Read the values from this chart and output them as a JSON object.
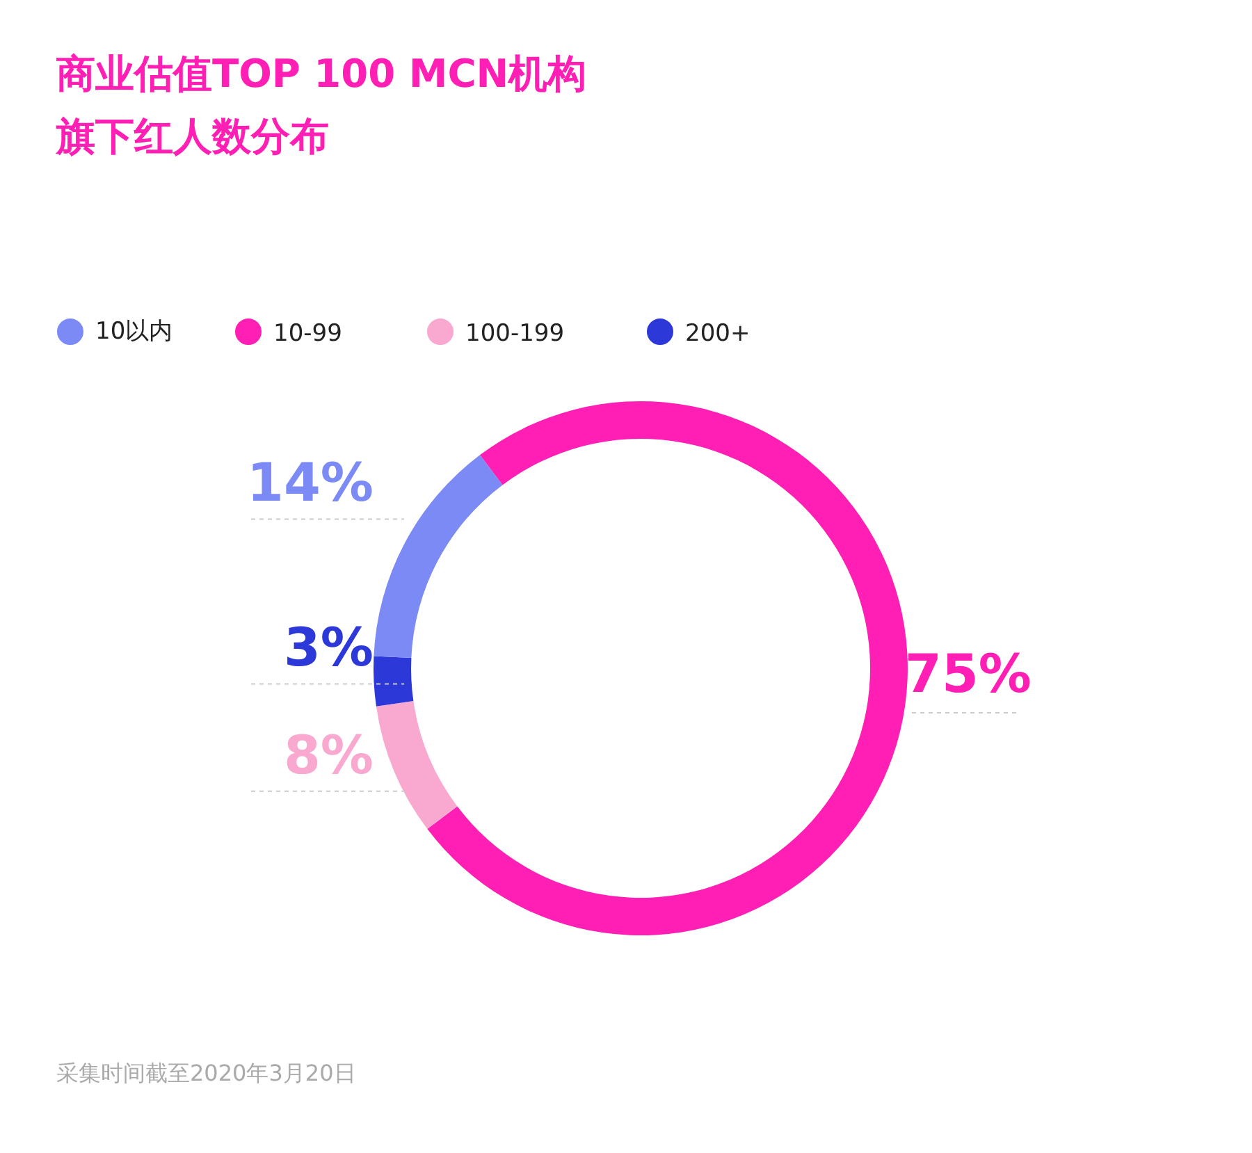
{
  "chart_data": {
    "type": "donut",
    "title": "商业估值TOP 100 MCN机构旗下红人数分布",
    "categories": [
      "10以内",
      "10-99",
      "100-199",
      "200+"
    ],
    "values": [
      14,
      75,
      8,
      3
    ],
    "colors": [
      "#7b8af5",
      "#ff1fb4",
      "#f9a8d0",
      "#2d38d8"
    ],
    "value_labels": [
      "14%",
      "75%",
      "8%",
      "3%"
    ],
    "legend": "top left",
    "annotations": [
      "采集时间截至2020年3月20日"
    ]
  }
}
